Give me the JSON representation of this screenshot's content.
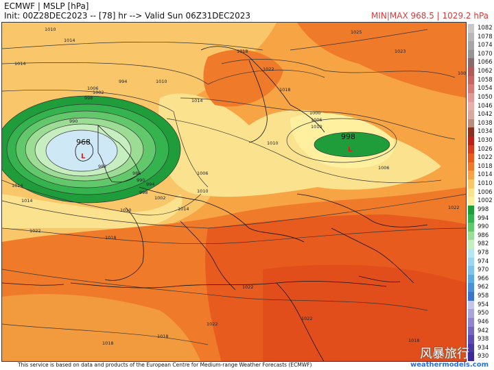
{
  "header": {
    "title": "ECMWF | MSLP [hPa]",
    "init_line": "Init: 00Z28DEC2023 -- [78] hr --> Valid Sun 06Z31DEC2023",
    "minmax": "MIN|MAX 968.5 | 1029.2 hPa"
  },
  "map": {
    "lows": [
      {
        "label": "968",
        "marker": "L"
      },
      {
        "label": "998",
        "marker": "L"
      }
    ],
    "contour_labels": [
      "1010",
      "1014",
      "1014",
      "1010",
      "1006",
      "1002",
      "998",
      "994",
      "990",
      "982",
      "986",
      "990",
      "994",
      "998",
      "1002",
      "1006",
      "1010",
      "1014",
      "1018",
      "1022",
      "1025",
      "1023",
      "1002",
      "1000",
      "1006",
      "1010",
      "1018",
      "1014",
      "1018",
      "1022",
      "1022",
      "1018",
      "1022",
      "1022",
      "1018",
      "1014",
      "1010",
      "1006",
      "1010",
      "1014",
      "1018",
      "1022"
    ],
    "colors": {
      "low_core": "#cfe8f6",
      "deep_green": "#1f9d3a",
      "light_green": "#7fd07a",
      "yellow": "#fff0a0",
      "orange": "#f7a445",
      "dark_orange": "#ef7a2a",
      "red_orange": "#e85b1f"
    }
  },
  "legend": {
    "title": "hPa",
    "levels": [
      "1082",
      "1078",
      "1074",
      "1070",
      "1066",
      "1062",
      "1058",
      "1054",
      "1050",
      "1046",
      "1042",
      "1038",
      "1034",
      "1030",
      "1026",
      "1022",
      "1018",
      "1014",
      "1010",
      "1006",
      "1002",
      "998",
      "994",
      "990",
      "986",
      "982",
      "978",
      "974",
      "970",
      "966",
      "962",
      "958",
      "954",
      "950",
      "946",
      "942",
      "938",
      "934",
      "930"
    ],
    "colors": [
      "#c8c8c8",
      "#b7b7b7",
      "#a6a6a6",
      "#959595",
      "#8a6a6a",
      "#b25a5a",
      "#c96464",
      "#d77a7a",
      "#e19a96",
      "#e8b0aa",
      "#d9a9a0",
      "#b98d7e",
      "#8b2f1f",
      "#b8221a",
      "#d83a1c",
      "#e85b1f",
      "#ef7a2a",
      "#f7a445",
      "#f9c76a",
      "#fbe28f",
      "#fff0a0",
      "#1f9d3a",
      "#35b34e",
      "#63c86b",
      "#9ddc95",
      "#c7eec0",
      "#b6e6f0",
      "#9dd6ee",
      "#7ec3ea",
      "#5ea9e2",
      "#4a8fd8",
      "#3f72cc",
      "#c3c6e8",
      "#a9a6db",
      "#8e86cf",
      "#7566c2",
      "#5d4bb4",
      "#4a36a6",
      "#3a2998"
    ]
  },
  "footer": {
    "credit": "This service is based on data and products of the European Centre for Medium-range Weather Forecasts (ECMWF)",
    "brand": "weathermodels.com",
    "watermark": "风暴旅行"
  }
}
